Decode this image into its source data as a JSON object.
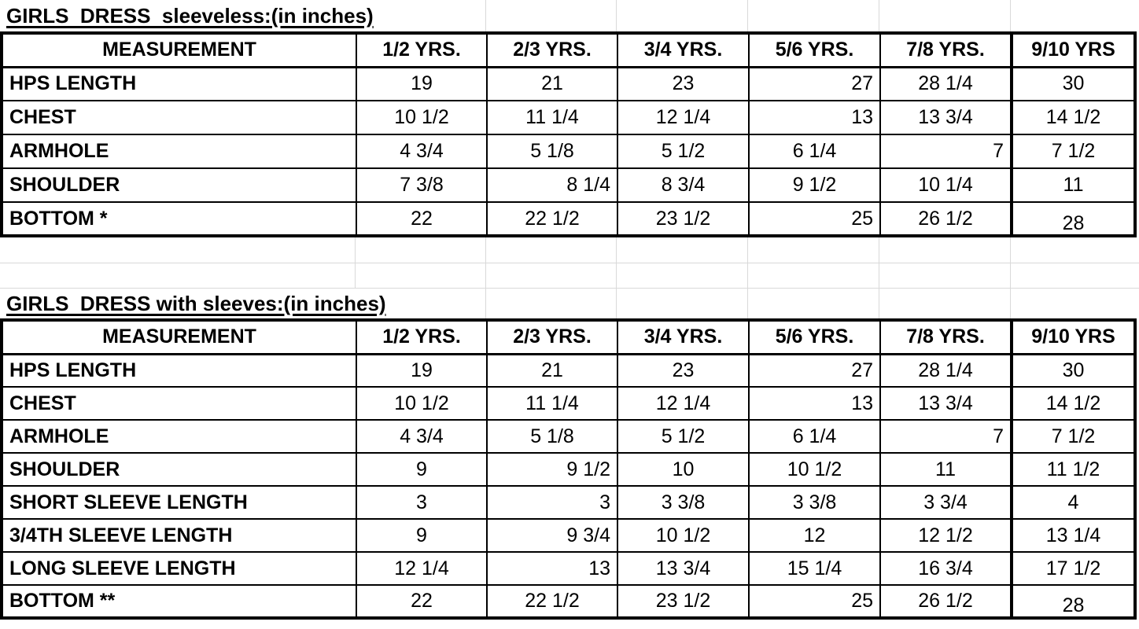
{
  "sheet": {
    "background": "#ffffff",
    "grid_color": "#d9d9d9",
    "border_color": "#000000",
    "text_color": "#000000"
  },
  "tables": [
    {
      "id": "sleeveless",
      "title": "GIRLS  DRESS  sleeveless:(in inches)",
      "columns": [
        "MEASUREMENT",
        "1/2 YRS.",
        "2/3 YRS.",
        "3/4 YRS.",
        "5/6 YRS.",
        "7/8 YRS.",
        "9/10 YRS"
      ],
      "rows": [
        {
          "label": "HPS LENGTH",
          "values": [
            "19",
            "21",
            "23",
            "27",
            "28 1/4",
            "30"
          ],
          "right_indices": [
            3
          ]
        },
        {
          "label": "CHEST",
          "values": [
            "10 1/2",
            "11 1/4",
            "12 1/4",
            "13",
            "13 3/4",
            "14 1/2"
          ],
          "right_indices": [
            3
          ]
        },
        {
          "label": "ARMHOLE",
          "values": [
            "4 3/4",
            "5 1/8",
            "5 1/2",
            "6 1/4",
            "7",
            "7 1/2"
          ],
          "right_indices": [
            4
          ]
        },
        {
          "label": "SHOULDER",
          "values": [
            "7 3/8",
            "8 1/4",
            "8 3/4",
            "9 1/2",
            "10 1/4",
            "11"
          ],
          "right_indices": [
            1
          ]
        },
        {
          "label": "BOTTOM *",
          "values": [
            "22",
            "22 1/2",
            "23 1/2",
            "25",
            "26 1/2",
            "28"
          ],
          "right_indices": [
            3
          ],
          "last_low": true
        }
      ]
    },
    {
      "id": "with-sleeves",
      "title": "GIRLS  DRESS with sleeves:(in inches)",
      "columns": [
        "MEASUREMENT",
        "1/2 YRS.",
        "2/3 YRS.",
        "3/4 YRS.",
        "5/6 YRS.",
        "7/8 YRS.",
        "9/10 YRS"
      ],
      "rows": [
        {
          "label": "HPS LENGTH",
          "values": [
            "19",
            "21",
            "23",
            "27",
            "28 1/4",
            "30"
          ],
          "right_indices": [
            3
          ]
        },
        {
          "label": "CHEST",
          "values": [
            "10 1/2",
            "11 1/4",
            "12 1/4",
            "13",
            "13 3/4",
            "14 1/2"
          ],
          "right_indices": [
            3
          ]
        },
        {
          "label": "ARMHOLE",
          "values": [
            "4 3/4",
            "5 1/8",
            "5 1/2",
            "6 1/4",
            "7",
            "7 1/2"
          ],
          "right_indices": [
            4
          ]
        },
        {
          "label": "SHOULDER",
          "values": [
            "9",
            "9 1/2",
            "10",
            "10 1/2",
            "11",
            "11 1/2"
          ],
          "right_indices": [
            1
          ]
        },
        {
          "label": "SHORT SLEEVE LENGTH",
          "values": [
            "3",
            "3",
            "3 3/8",
            "3 3/8",
            "3 3/4",
            "4"
          ],
          "right_indices": [
            1
          ]
        },
        {
          "label": "3/4TH SLEEVE LENGTH",
          "values": [
            "9",
            "9 3/4",
            "10 1/2",
            "12",
            "12 1/2",
            "13 1/4"
          ],
          "right_indices": [
            1
          ]
        },
        {
          "label": "LONG SLEEVE LENGTH",
          "values": [
            "12 1/4",
            "13",
            "13 3/4",
            "15 1/4",
            "16 3/4",
            "17 1/2"
          ],
          "right_indices": [
            1
          ]
        },
        {
          "label": "BOTTOM **",
          "values": [
            "22",
            "22 1/2",
            "23 1/2",
            "25",
            "26 1/2",
            "28"
          ],
          "right_indices": [
            3
          ],
          "last_low": true
        }
      ]
    }
  ]
}
